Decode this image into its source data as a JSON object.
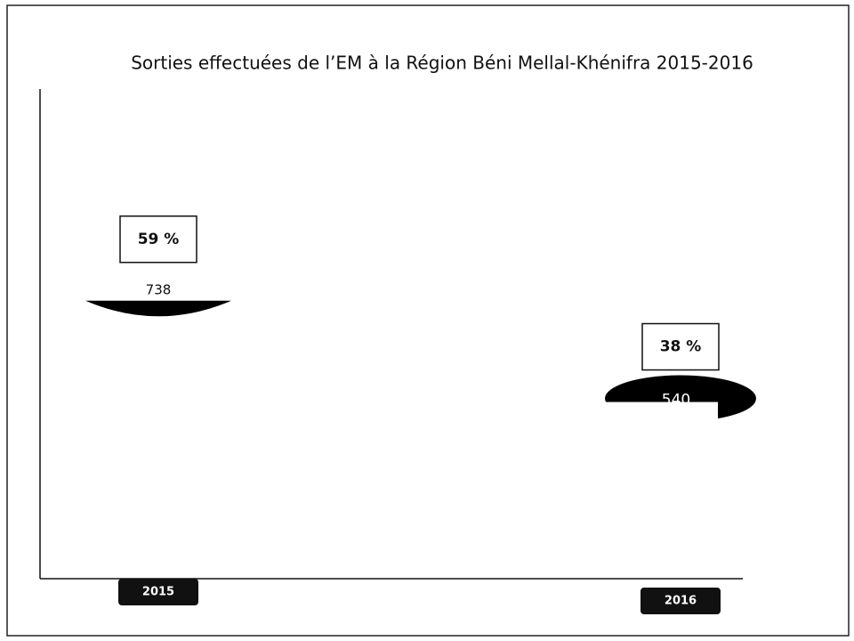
{
  "chart_data": {
    "type": "disc",
    "title": "Sorties effectuées de l’EM à la Région Béni Mellal-Khénifra 2015-2016",
    "categories": [
      "2015",
      "2016"
    ],
    "values": [
      738,
      540
    ],
    "percentages": [
      59,
      38
    ],
    "percentage_labels": [
      "59 %",
      "38 %"
    ],
    "color": "#000000",
    "ylim": [
      0,
      1300
    ]
  }
}
